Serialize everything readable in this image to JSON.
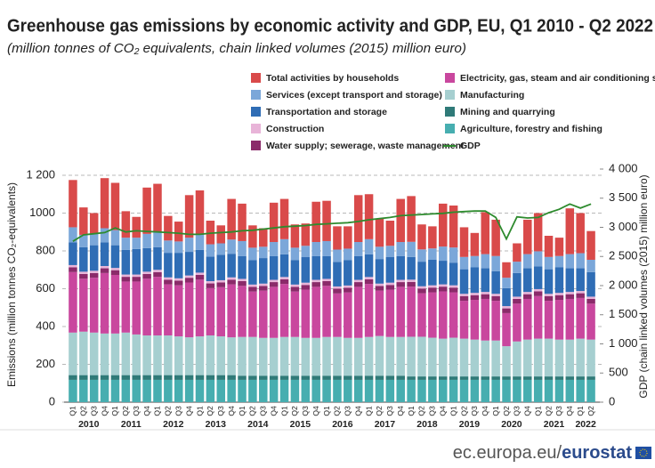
{
  "chart_data": {
    "type": "bar",
    "stacked": true,
    "title": "Greenhouse gas emissions by economic activity and GDP, EU, Q1 2010 - Q2 2022",
    "subtitle": "(million tonnes of CO₂ equivalents, chain linked volumes (2015) million euro)",
    "y_label": "Emissions (million tonnes CO₂-equivalents)",
    "y2_label": "GDP (chain linked volumes (2015) million euro)",
    "grid": true,
    "categories": [
      "Q1",
      "Q2",
      "Q3",
      "Q4",
      "Q1",
      "Q2",
      "Q3",
      "Q4",
      "Q1",
      "Q2",
      "Q3",
      "Q4",
      "Q1",
      "Q2",
      "Q3",
      "Q4",
      "Q1",
      "Q2",
      "Q3",
      "Q4",
      "Q1",
      "Q2",
      "Q3",
      "Q4",
      "Q1",
      "Q2",
      "Q3",
      "Q4",
      "Q1",
      "Q2",
      "Q3",
      "Q4",
      "Q1",
      "Q2",
      "Q3",
      "Q4",
      "Q1",
      "Q2",
      "Q3",
      "Q4",
      "Q1",
      "Q2",
      "Q3",
      "Q4",
      "Q1",
      "Q2",
      "Q3",
      "Q4",
      "Q1",
      "Q2"
    ],
    "year_labels": [
      "2010",
      "2011",
      "2012",
      "2013",
      "2014",
      "2015",
      "2016",
      "2017",
      "2018",
      "2019",
      "2020",
      "2021",
      "2022"
    ],
    "ylim": [
      0,
      1200
    ],
    "yticks": [
      0,
      200,
      400,
      600,
      800,
      1000,
      {
        "value": 1200,
        "label": "1 200"
      }
    ],
    "y2lim": [
      0,
      4000
    ],
    "y2ticks": [
      0,
      500,
      {
        "value": 1000,
        "label": "1 000"
      },
      {
        "value": 1500,
        "label": "1 500"
      },
      {
        "value": 2000,
        "label": "2 000"
      },
      {
        "value": 2500,
        "label": "2 500"
      },
      {
        "value": 3000,
        "label": "3 000"
      },
      {
        "value": 3500,
        "label": "3 500"
      },
      {
        "value": 4000,
        "label": "4 000"
      }
    ],
    "series": [
      {
        "name": "Agriculture, forestry and fishing",
        "color": "#47aeb0",
        "values": [
          118,
          118,
          118,
          118,
          118,
          118,
          118,
          118,
          118,
          118,
          118,
          118,
          118,
          118,
          118,
          118,
          118,
          118,
          118,
          118,
          118,
          118,
          118,
          118,
          118,
          118,
          118,
          118,
          118,
          118,
          118,
          118,
          118,
          118,
          118,
          118,
          118,
          118,
          118,
          118,
          118,
          118,
          118,
          118,
          118,
          118,
          118,
          118,
          118,
          118
        ]
      },
      {
        "name": "Mining and quarrying",
        "color": "#2f7a78",
        "values": [
          25,
          25,
          25,
          25,
          25,
          25,
          25,
          25,
          25,
          25,
          25,
          25,
          25,
          25,
          25,
          25,
          22,
          22,
          22,
          22,
          22,
          22,
          22,
          22,
          22,
          22,
          22,
          22,
          22,
          22,
          22,
          22,
          18,
          18,
          18,
          18,
          18,
          18,
          18,
          18,
          18,
          18,
          18,
          18,
          18,
          18,
          18,
          18,
          18,
          18
        ]
      },
      {
        "name": "Manufacturing",
        "color": "#a6cfd0",
        "values": [
          225,
          230,
          225,
          220,
          220,
          225,
          215,
          210,
          210,
          210,
          205,
          200,
          205,
          210,
          205,
          200,
          205,
          205,
          200,
          200,
          205,
          205,
          200,
          200,
          205,
          205,
          200,
          200,
          205,
          210,
          205,
          205,
          210,
          210,
          205,
          200,
          205,
          200,
          195,
          190,
          190,
          160,
          185,
          195,
          200,
          200,
          195,
          195,
          200,
          195
        ]
      },
      {
        "name": "Electricity, gas, steam and air conditioning supply",
        "color": "#c9479e",
        "values": [
          320,
          280,
          290,
          320,
          310,
          270,
          280,
          300,
          310,
          270,
          270,
          290,
          300,
          250,
          260,
          280,
          270,
          240,
          250,
          270,
          280,
          240,
          255,
          270,
          270,
          230,
          240,
          270,
          280,
          240,
          250,
          265,
          265,
          230,
          240,
          250,
          240,
          200,
          210,
          220,
          210,
          175,
          200,
          215,
          225,
          200,
          210,
          215,
          215,
          190
        ]
      },
      {
        "name": "Water supply; sewerage, waste management",
        "color": "#8b2a6a",
        "values": [
          25,
          25,
          25,
          25,
          25,
          25,
          25,
          25,
          25,
          25,
          25,
          25,
          25,
          25,
          25,
          25,
          25,
          25,
          25,
          25,
          25,
          25,
          25,
          25,
          25,
          25,
          25,
          25,
          25,
          25,
          25,
          25,
          25,
          25,
          25,
          25,
          25,
          25,
          25,
          25,
          25,
          25,
          25,
          25,
          25,
          25,
          25,
          25,
          25,
          25
        ]
      },
      {
        "name": "Construction",
        "color": "#e8b4d8",
        "values": [
          12,
          12,
          12,
          12,
          12,
          12,
          12,
          12,
          12,
          12,
          12,
          12,
          12,
          12,
          12,
          12,
          12,
          12,
          12,
          12,
          12,
          12,
          12,
          12,
          12,
          12,
          12,
          12,
          12,
          12,
          12,
          12,
          12,
          12,
          12,
          12,
          12,
          12,
          12,
          12,
          12,
          12,
          12,
          12,
          12,
          12,
          12,
          12,
          12,
          12
        ]
      },
      {
        "name": "Transportation and storage",
        "color": "#2f6db5",
        "values": [
          120,
          130,
          135,
          125,
          120,
          130,
          135,
          125,
          120,
          130,
          135,
          125,
          120,
          130,
          135,
          125,
          120,
          130,
          135,
          125,
          120,
          130,
          135,
          125,
          120,
          130,
          135,
          125,
          120,
          130,
          135,
          125,
          120,
          130,
          135,
          125,
          120,
          130,
          135,
          125,
          120,
          95,
          125,
          125,
          120,
          130,
          135,
          125,
          120,
          130
        ]
      },
      {
        "name": "Services (except transport and storage)",
        "color": "#7ba7d9",
        "values": [
          80,
          65,
          60,
          75,
          80,
          65,
          60,
          75,
          80,
          65,
          60,
          75,
          80,
          65,
          60,
          75,
          80,
          65,
          60,
          75,
          80,
          65,
          60,
          75,
          80,
          65,
          60,
          75,
          80,
          65,
          60,
          75,
          80,
          65,
          60,
          75,
          80,
          65,
          60,
          75,
          80,
          55,
          60,
          75,
          80,
          65,
          60,
          75,
          80,
          65
        ]
      },
      {
        "name": "Total activities by households",
        "color": "#d94a4a",
        "values": [
          250,
          145,
          110,
          265,
          250,
          140,
          110,
          245,
          255,
          130,
          105,
          225,
          235,
          125,
          95,
          215,
          198,
          118,
          98,
          208,
          213,
          123,
          118,
          213,
          213,
          123,
          118,
          248,
          238,
          148,
          133,
          228,
          242,
          132,
          117,
          227,
          222,
          157,
          122,
          222,
          192,
          82,
          97,
          182,
          202,
          112,
          97,
          242,
          212,
          152
        ]
      },
      {
        "name": "GDP",
        "color": "#2e8b2e",
        "type": "line",
        "axis": "y2",
        "values": [
          2760,
          2870,
          2890,
          2910,
          2990,
          2920,
          2940,
          2930,
          2920,
          2910,
          2900,
          2880,
          2880,
          2900,
          2910,
          2920,
          2940,
          2950,
          2970,
          2990,
          3010,
          3020,
          3030,
          3050,
          3060,
          3070,
          3080,
          3100,
          3130,
          3150,
          3170,
          3200,
          3210,
          3220,
          3230,
          3240,
          3260,
          3270,
          3280,
          3280,
          3170,
          2800,
          3180,
          3160,
          3170,
          3250,
          3310,
          3400,
          3330,
          3400
        ]
      }
    ]
  },
  "footer": {
    "site": "ec.europa.eu/",
    "brand": "eurostat"
  }
}
